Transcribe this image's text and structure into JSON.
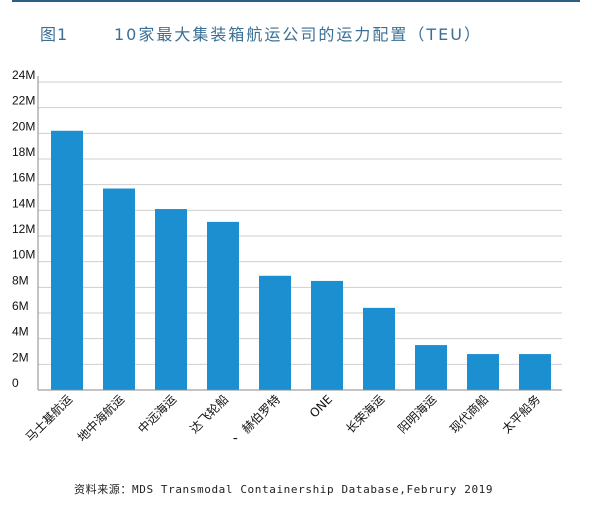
{
  "header": {
    "figure_number": "图1",
    "title": "10家最大集装箱航运公司的运力配置（TEU）"
  },
  "source": "资料来源：MDS Transmodal Containership Database,Februry 2019",
  "colors": {
    "bar": "#1b8fd0",
    "grid": "#cfcfcf",
    "axis": "#888888",
    "title": "#3a6f96"
  },
  "chart_data": {
    "type": "bar",
    "categories": [
      "马士基航运",
      "地中海航运",
      "中远海运",
      "达飞轮船",
      "赫伯罗特",
      "ONE",
      "长荣海运",
      "阳明海运",
      "现代商船",
      "太平船务"
    ],
    "category_prefix_marks": [
      "",
      "",
      "",
      "",
      "、",
      "",
      "",
      "",
      "",
      ""
    ],
    "values": [
      20200000,
      15700000,
      14100000,
      13100000,
      8900000,
      8500000,
      6400000,
      3500000,
      2800000,
      2800000
    ],
    "yticks": [
      "0",
      "2M",
      "4M",
      "6M",
      "8M",
      "10M",
      "12M",
      "14M",
      "16M",
      "18M",
      "20M",
      "22M",
      "24M"
    ],
    "ylim": [
      0,
      24000000
    ],
    "grid": true,
    "legend": "none"
  }
}
